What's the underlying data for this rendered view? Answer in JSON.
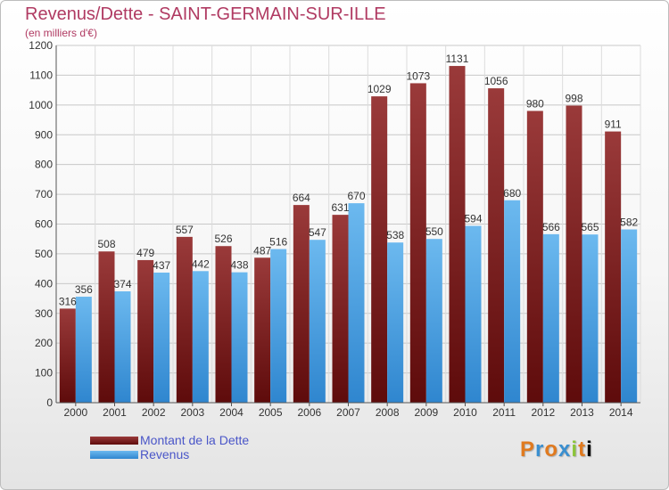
{
  "header": {
    "title": "Revenus/Dette - SAINT-GERMAIN-SUR-ILLE",
    "subtitle": "(en milliers d'€)"
  },
  "colors": {
    "title": "#b03a62",
    "dette_top": "#9a3a3a",
    "dette_bottom": "#5e0b0b",
    "revenus_top": "#6cb9ef",
    "revenus_bottom": "#2f86cf",
    "legend_text": "#4a56c8"
  },
  "chart_data": {
    "type": "bar",
    "categories": [
      "2000",
      "2001",
      "2002",
      "2003",
      "2004",
      "2005",
      "2006",
      "2007",
      "2008",
      "2009",
      "2010",
      "2011",
      "2012",
      "2013",
      "2014"
    ],
    "series": [
      {
        "name": "Montant de la Dette",
        "values": [
          316,
          508,
          479,
          557,
          526,
          487,
          664,
          631,
          1029,
          1073,
          1131,
          1056,
          980,
          998,
          911
        ]
      },
      {
        "name": "Revenus",
        "values": [
          356,
          374,
          437,
          442,
          438,
          516,
          547,
          670,
          538,
          550,
          594,
          680,
          566,
          565,
          582
        ]
      }
    ],
    "ylim": [
      0,
      1200
    ],
    "yticks": [
      0,
      100,
      200,
      300,
      400,
      500,
      600,
      700,
      800,
      900,
      1000,
      1100,
      1200
    ],
    "grid": true,
    "legend_position": "bottom-left"
  },
  "legend": {
    "dette_label": "Montant de la Dette",
    "revenus_label": "Revenus"
  },
  "brand": {
    "letters": [
      "P",
      "r",
      "o",
      "x",
      "i",
      "t",
      "i"
    ]
  }
}
